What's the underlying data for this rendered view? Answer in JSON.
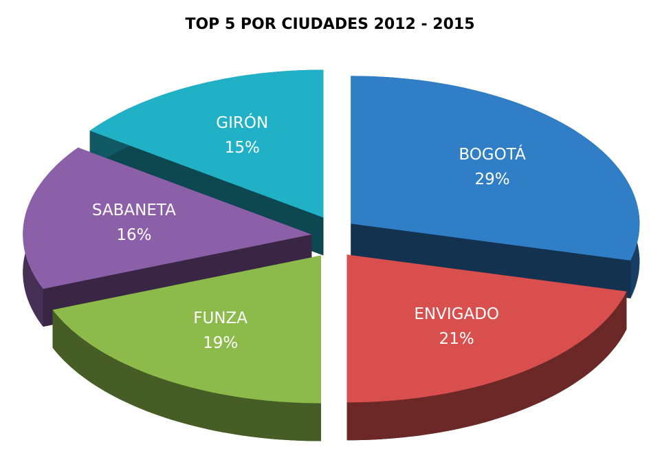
{
  "chart_data": {
    "type": "pie3d",
    "title": "TOP 5 POR CIUDADES 2012 - 2015",
    "categories": [
      "BOGOTÁ",
      "ENVIGADO",
      "FUNZA",
      "SABANETA",
      "GIRÓN"
    ],
    "values": [
      29,
      21,
      19,
      16,
      15
    ],
    "value_labels": [
      "29%",
      "21%",
      "19%",
      "16%",
      "15%"
    ],
    "colors": [
      "#2f7ec6",
      "#d84f4d",
      "#8cbb4b",
      "#8b60a9",
      "#20b1c7"
    ]
  }
}
